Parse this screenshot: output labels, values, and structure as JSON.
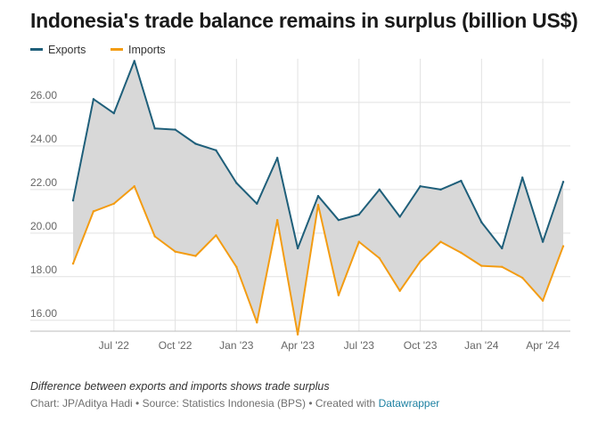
{
  "title": "Indonesia's trade balance remains in surplus (billion US$)",
  "legend": {
    "exports_label": "Exports",
    "imports_label": "Imports"
  },
  "notes": "Difference between exports and imports shows trade surplus",
  "credit": {
    "prefix": "Chart: JP/Aditya Hadi • Source: Statistics Indonesia (BPS) • Created with ",
    "link_text": "Datawrapper"
  },
  "colors": {
    "exports": "#1f5f7a",
    "imports": "#f39c12",
    "fill": "#d8d8d8",
    "grid": "#e2e2e2",
    "axis_text": "#666666",
    "link": "#1d81a2"
  },
  "chart_data": {
    "type": "line",
    "x": [
      "2022-05",
      "2022-06",
      "2022-07",
      "2022-08",
      "2022-09",
      "2022-10",
      "2022-11",
      "2022-12",
      "2023-01",
      "2023-02",
      "2023-03",
      "2023-04",
      "2023-05",
      "2023-06",
      "2023-07",
      "2023-08",
      "2023-09",
      "2023-10",
      "2023-11",
      "2023-12",
      "2024-01",
      "2024-02",
      "2024-03",
      "2024-04",
      "2024-05"
    ],
    "series": [
      {
        "name": "Exports",
        "values": [
          21.5,
          26.15,
          25.5,
          27.9,
          24.8,
          24.75,
          24.1,
          23.8,
          22.3,
          21.35,
          23.45,
          19.3,
          21.7,
          20.6,
          20.85,
          22.0,
          20.75,
          22.15,
          22.0,
          22.4,
          20.5,
          19.3,
          22.55,
          19.6,
          22.35
        ]
      },
      {
        "name": "Imports",
        "values": [
          18.6,
          21.0,
          21.35,
          22.15,
          19.85,
          19.15,
          18.95,
          19.9,
          18.45,
          15.9,
          20.6,
          15.35,
          21.3,
          17.15,
          19.6,
          18.85,
          17.35,
          18.7,
          19.6,
          19.1,
          18.5,
          18.45,
          17.95,
          16.9,
          19.4
        ]
      }
    ],
    "fill_between": "Exports-Imports",
    "ylim": [
      15.5,
      28
    ],
    "y_ticks": [
      "16.00",
      "18.00",
      "20.00",
      "22.00",
      "24.00",
      "26.00"
    ],
    "x_ticks": [
      {
        "x": "2022-07",
        "label": "Jul '22"
      },
      {
        "x": "2022-10",
        "label": "Oct '22"
      },
      {
        "x": "2023-01",
        "label": "Jan '23"
      },
      {
        "x": "2023-04",
        "label": "Apr '23"
      },
      {
        "x": "2023-07",
        "label": "Jul '23"
      },
      {
        "x": "2023-10",
        "label": "Oct '23"
      },
      {
        "x": "2024-01",
        "label": "Jan '24"
      },
      {
        "x": "2024-04",
        "label": "Apr '24"
      }
    ],
    "grid": true,
    "legend_position": "top-left"
  }
}
